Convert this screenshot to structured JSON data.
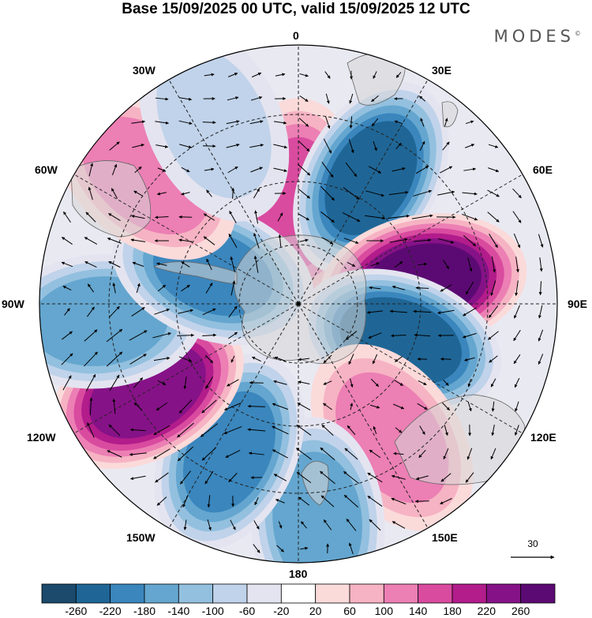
{
  "title": "Base 15/09/2025 00 UTC, valid 15/09/2025 12 UTC",
  "brand": "MODES",
  "brand_mark": "©",
  "longitude_labels": {
    "n0": "0",
    "e30": "30E",
    "e60": "60E",
    "e90": "90E",
    "e120": "120E",
    "e150": "150E",
    "s180": "180",
    "w150": "150W",
    "w120": "120W",
    "w90": "90W",
    "w60": "60W",
    "w30": "30W"
  },
  "vector_reference": "30",
  "colorbar": {
    "ticks": [
      "-260",
      "-220",
      "-180",
      "-140",
      "-100",
      "-60",
      "-20",
      "20",
      "60",
      "100",
      "140",
      "180",
      "220",
      "260"
    ],
    "colors": [
      "#1b4a6c",
      "#1f6696",
      "#3a86bd",
      "#64a6cf",
      "#93c0df",
      "#c0d3ea",
      "#e4e4f0",
      "#ffffff",
      "#fbdada",
      "#f6b3c3",
      "#ec7fb4",
      "#d94b9f",
      "#b21c8b",
      "#861287",
      "#5c0a73"
    ]
  },
  "anomalies": [
    {
      "lat_off": 28,
      "lon": 0,
      "value": 150,
      "label": "pink-north"
    },
    {
      "lat_off": 40,
      "lon": 30,
      "value": -240,
      "label": "blue-30E"
    },
    {
      "lat_off": 35,
      "lon": 80,
      "value": 270,
      "label": "purple-70E"
    },
    {
      "lat_off": 30,
      "lon": 110,
      "value": -250,
      "label": "blue-110E"
    },
    {
      "lat_off": 45,
      "lon": 145,
      "value": 120,
      "label": "pink-150E"
    },
    {
      "lat_off": 60,
      "lon": 175,
      "value": -170,
      "label": "blue-180"
    },
    {
      "lat_off": 45,
      "lon": -155,
      "value": -200,
      "label": "blue-155W"
    },
    {
      "lat_off": 48,
      "lon": -120,
      "value": 250,
      "label": "purple-120W"
    },
    {
      "lat_off": 55,
      "lon": -95,
      "value": -170,
      "label": "blue-95W"
    },
    {
      "lat_off": 25,
      "lon": -70,
      "value": -190,
      "label": "blue-70W"
    },
    {
      "lat_off": 55,
      "lon": -50,
      "value": 120,
      "label": "pink-55W"
    },
    {
      "lat_off": 55,
      "lon": -25,
      "value": -70,
      "label": "light-blue-30W"
    }
  ]
}
